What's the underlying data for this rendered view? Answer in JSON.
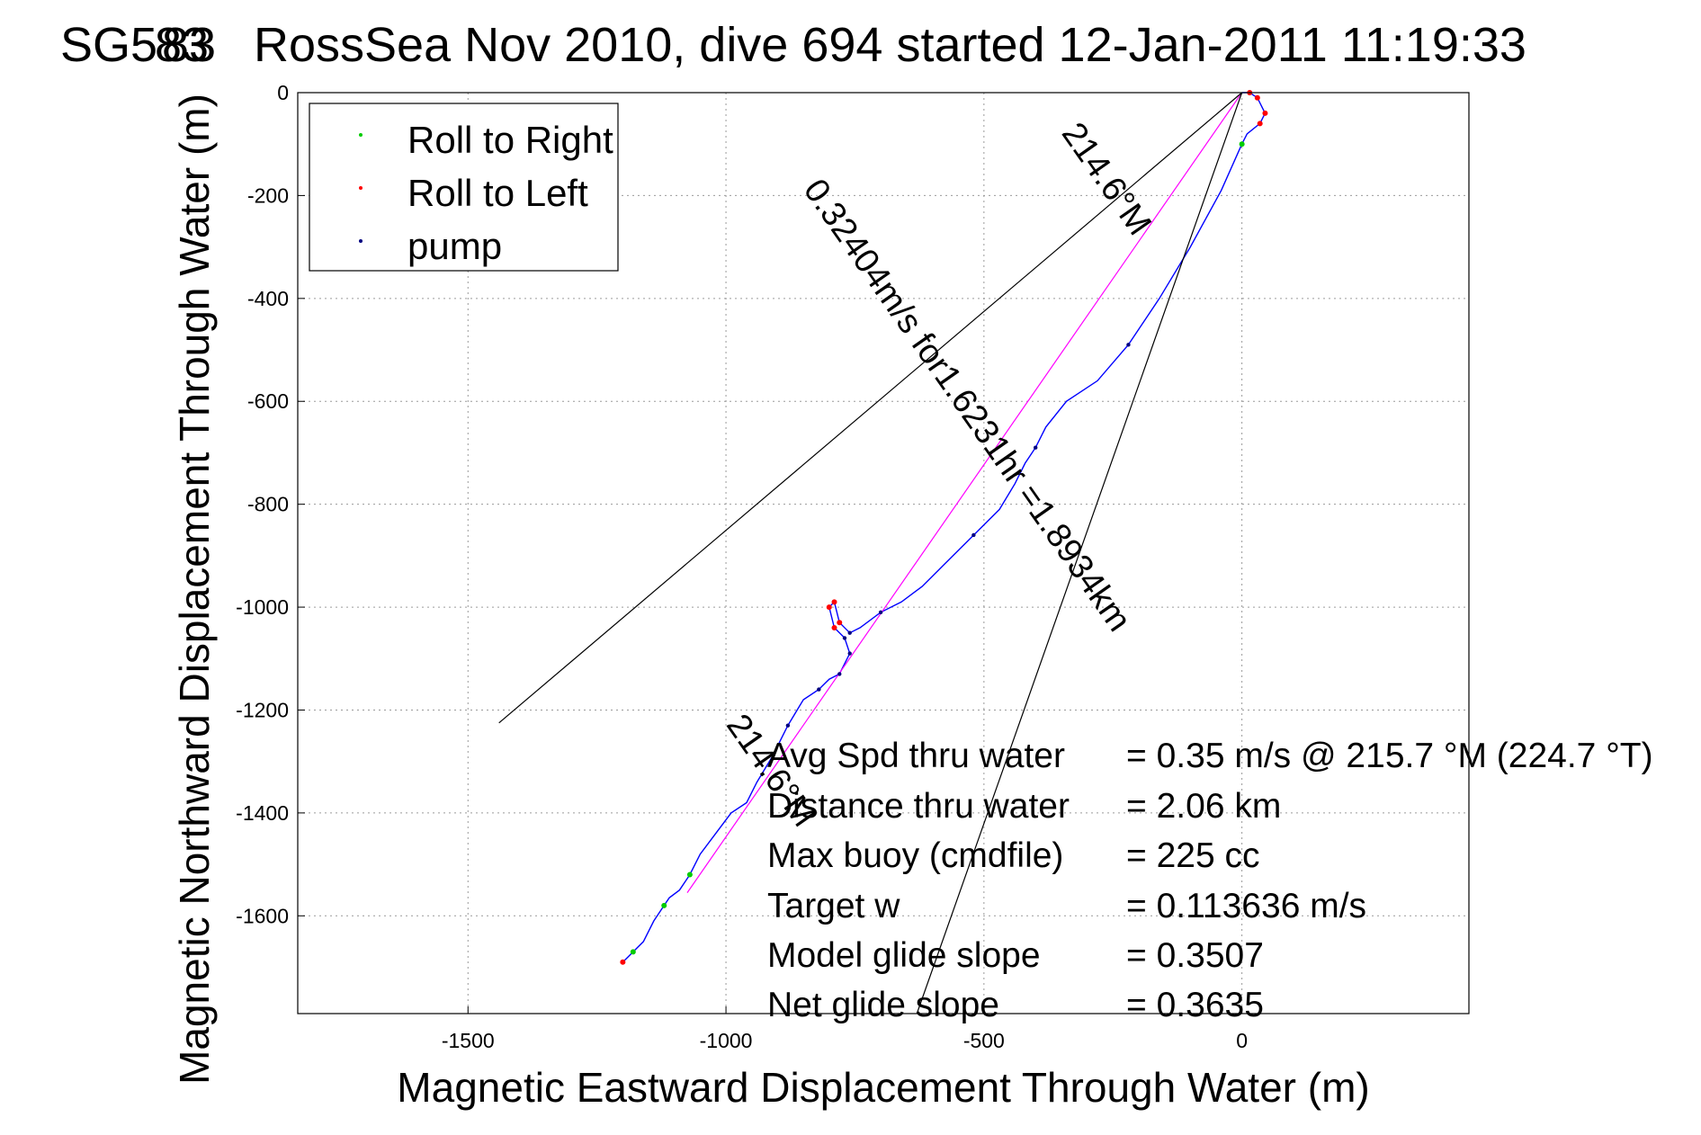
{
  "chart_data": {
    "type": "line",
    "title": "SG5̶83 RossSea Nov 2010, dive 694 started 12-Jan-2011 11:19:33",
    "title_parts": [
      "SG5",
      "83",
      "RossSea Nov 2010, dive 694 started 12-Jan-2011 11:19:33"
    ],
    "xlabel": "Magnetic Eastward Displacement Through Water (m)",
    "ylabel": "Magnetic Northward Displacement Through Water (m)",
    "xlim": [
      -1830,
      440
    ],
    "ylim": [
      -1790,
      0
    ],
    "xticks": [
      -1500,
      -1000,
      -500,
      0
    ],
    "yticks": [
      0,
      -200,
      -400,
      -600,
      -800,
      -1000,
      -1200,
      -1400,
      -1600
    ],
    "grid": true,
    "legend_placement": "top-left",
    "legend": [
      {
        "name": "Roll to Right",
        "color": "#00cc00"
      },
      {
        "name": "Roll to Left",
        "color": "#ff0000"
      },
      {
        "name": "pump",
        "color": "#000080"
      }
    ],
    "series": [
      {
        "name": "track",
        "color": "#0000ff",
        "x": [
          0,
          15,
          30,
          45,
          35,
          10,
          0,
          -40,
          -100,
          -160,
          -220,
          -280,
          -340,
          -380,
          -400,
          -420,
          -440,
          -470,
          -520,
          -580,
          -620,
          -660,
          -700,
          -740,
          -760,
          -780,
          -790,
          -800,
          -790,
          -770,
          -760,
          -780,
          -800,
          -820,
          -850,
          -880,
          -910,
          -940,
          -960,
          -990,
          -1020,
          -1050,
          -1070,
          -1090,
          -1110,
          -1120,
          -1140,
          -1160,
          -1180,
          -1190,
          -1200
        ],
        "y": [
          0,
          0,
          -10,
          -40,
          -60,
          -80,
          -100,
          -190,
          -300,
          -400,
          -490,
          -560,
          -600,
          -650,
          -690,
          -720,
          -760,
          -810,
          -860,
          -920,
          -960,
          -990,
          -1010,
          -1040,
          -1050,
          -1030,
          -990,
          -1000,
          -1040,
          -1060,
          -1090,
          -1130,
          -1140,
          -1160,
          -1180,
          -1230,
          -1290,
          -1340,
          -1380,
          -1400,
          -1440,
          -1480,
          -1520,
          -1550,
          -1565,
          -1580,
          -1610,
          -1650,
          -1670,
          -1680,
          -1690
        ]
      },
      {
        "name": "magnetic-heading",
        "color": "#ff00ff",
        "x": [
          0,
          -1075
        ],
        "y": [
          0,
          -1555
        ]
      },
      {
        "name": "envelope-left",
        "color": "#000000",
        "x": [
          0,
          -1440
        ],
        "y": [
          0,
          -1225
        ]
      },
      {
        "name": "envelope-right",
        "color": "#000000",
        "x": [
          0,
          -630
        ],
        "y": [
          0,
          -1790
        ]
      }
    ],
    "annotations": [
      {
        "text": "214.6°M",
        "x": -280,
        "y": -180,
        "angle": 55
      },
      {
        "text": "0.32404m/s for1.6231hr =1.8934km",
        "x": -550,
        "y": -620,
        "angle": 55
      },
      {
        "text": "214.6°M",
        "x": -930,
        "y": -1330,
        "angle": 55
      }
    ],
    "stats": [
      {
        "label": "Avg Spd thru water",
        "value": "=  0.35 m/s @ 215.7 °M (224.7 °T)"
      },
      {
        "label": "Distance thru water",
        "value": "=  2.06 km"
      },
      {
        "label": "Max buoy (cmdfile)",
        "value": "= 225 cc"
      },
      {
        "label": "Target w",
        "value": "= 0.113636 m/s"
      },
      {
        "label": "Model glide slope",
        "value": "= 0.3507"
      },
      {
        "label": "Net glide slope",
        "value": "= 0.3635"
      }
    ]
  }
}
